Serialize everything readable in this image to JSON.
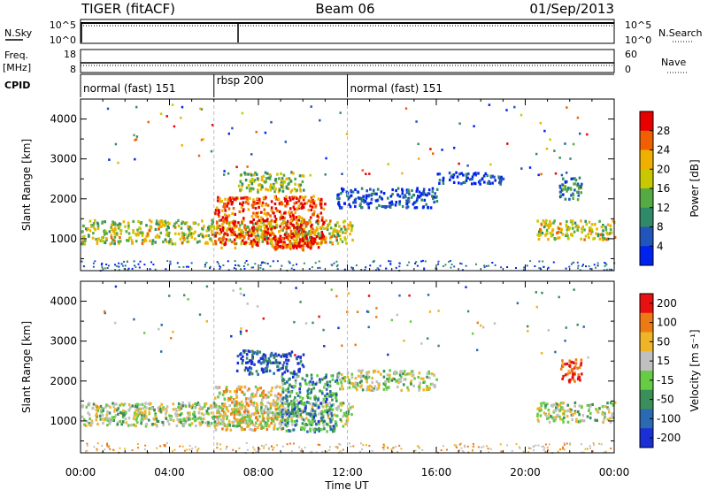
{
  "header": {
    "station": "TIGER (fitACF)",
    "beam": "Beam 06",
    "date": "01/Sep/2013"
  },
  "aux_panels": {
    "nsky": {
      "label": "N.Sky",
      "ticks_left": [
        "10^5",
        "10^0"
      ]
    },
    "nsearch": {
      "label": "N.Search",
      "ticks_right": [
        "10^5",
        "10^0"
      ]
    },
    "freq": {
      "label_line1": "Freq.",
      "label_line2": "[MHz]",
      "ticks_left": [
        "18",
        "8"
      ]
    },
    "nave": {
      "label": "Nave",
      "ticks_right": [
        "60",
        "0"
      ]
    },
    "cpid": {
      "label": "CPID",
      "segments": [
        {
          "label": "normal (fast) 151",
          "start_hr": 0,
          "end_hr": 6
        },
        {
          "label": "rbsp 200",
          "start_hr": 6,
          "end_hr": 12
        },
        {
          "label": "normal (fast) 151",
          "start_hr": 12,
          "end_hr": 24
        }
      ]
    }
  },
  "chart_data": [
    {
      "type": "heatmap",
      "id": "power",
      "ylabel": "Slant Range [km]",
      "xlabel": "",
      "xlim_hr": [
        0,
        24
      ],
      "ylim_km": [
        200,
        4500
      ],
      "y_ticks": [
        1000,
        2000,
        3000,
        4000
      ],
      "colorbar": {
        "label": "Power [dB]",
        "ticks": [
          4,
          8,
          12,
          16,
          20,
          24,
          28
        ],
        "range": [
          0,
          32
        ],
        "colors": [
          "#0022ee",
          "#2255bb",
          "#2f8a6a",
          "#55aa44",
          "#c8c800",
          "#f0b000",
          "#f06000",
          "#e80000"
        ]
      },
      "echo_regions": [
        {
          "t0": 0,
          "t1": 12.2,
          "r0": 900,
          "r1": 1500,
          "level": 0.55
        },
        {
          "t0": 6,
          "t1": 11,
          "r0": 800,
          "r1": 2100,
          "level": 0.85
        },
        {
          "t0": 8.5,
          "t1": 10.5,
          "r0": 750,
          "r1": 1100,
          "level": 0.95
        },
        {
          "t0": 7,
          "t1": 10,
          "r0": 2200,
          "r1": 2700,
          "level": 0.5
        },
        {
          "t0": 11.5,
          "t1": 16,
          "r0": 1800,
          "r1": 2300,
          "level": 0.15
        },
        {
          "t0": 16,
          "t1": 19,
          "r0": 2400,
          "r1": 2700,
          "level": 0.1
        },
        {
          "t0": 20.5,
          "t1": 24,
          "r0": 1000,
          "r1": 1500,
          "level": 0.55
        },
        {
          "t0": 21.5,
          "t1": 22.5,
          "r0": 2000,
          "r1": 2600,
          "level": 0.3
        }
      ]
    },
    {
      "type": "heatmap",
      "id": "velocity",
      "ylabel": "Slant Range [km]",
      "xlabel": "Time UT",
      "xlim_hr": [
        0,
        24
      ],
      "ylim_km": [
        200,
        4500
      ],
      "y_ticks": [
        1000,
        2000,
        3000,
        4000
      ],
      "x_ticks": [
        "00:00",
        "04:00",
        "08:00",
        "12:00",
        "16:00",
        "20:00",
        "00:00"
      ],
      "colorbar": {
        "label": "Velocity [m s⁻¹]",
        "ticks": [
          "200",
          "100",
          "50",
          "15",
          "-15",
          "-50",
          "-100",
          "-200"
        ],
        "colors": [
          "#1a2fd6",
          "#2a6ab2",
          "#3c8f5a",
          "#66cc44",
          "#c0c0c0",
          "#f0b428",
          "#ee7a14",
          "#e81010"
        ]
      },
      "echo_regions": [
        {
          "t0": 0,
          "t1": 12.2,
          "r0": 900,
          "r1": 1500,
          "level": 0.5
        },
        {
          "t0": 6,
          "t1": 9,
          "r0": 800,
          "r1": 1900,
          "level": 0.65
        },
        {
          "t0": 9,
          "t1": 11.5,
          "r0": 750,
          "r1": 2200,
          "level": 0.3
        },
        {
          "t0": 7,
          "t1": 10,
          "r0": 2200,
          "r1": 2800,
          "level": 0.15
        },
        {
          "t0": 11.5,
          "t1": 16,
          "r0": 1800,
          "r1": 2300,
          "level": 0.5
        },
        {
          "t0": 20.5,
          "t1": 24,
          "r0": 1000,
          "r1": 1500,
          "level": 0.5
        },
        {
          "t0": 21.5,
          "t1": 22.5,
          "r0": 2000,
          "r1": 2600,
          "level": 0.95
        }
      ]
    }
  ]
}
